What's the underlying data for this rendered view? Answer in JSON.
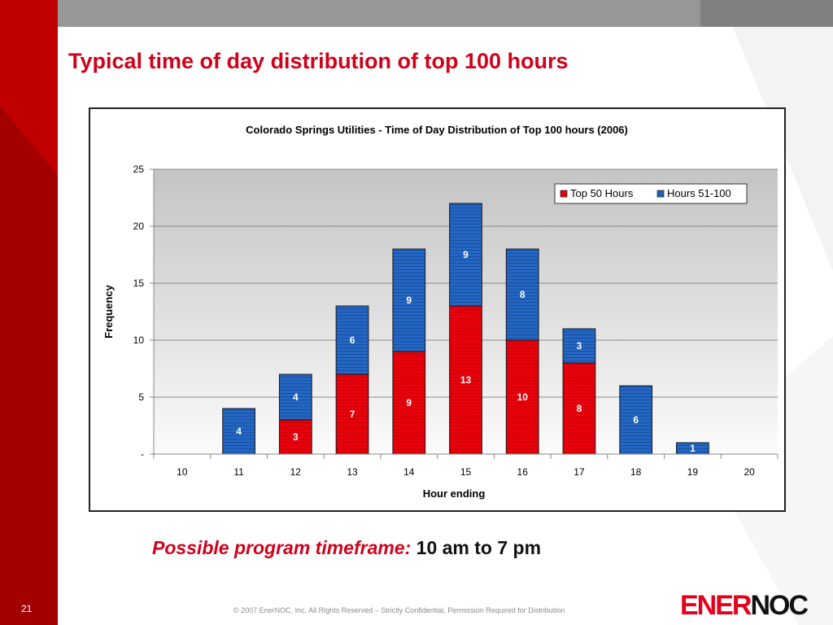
{
  "slide": {
    "title": "Typical time of day distribution of top 100 hours",
    "program_label": "Possible program timeframe:",
    "program_value": "10 am to 7 pm",
    "slide_number": "21",
    "copyright": "© 2007 EnerNOC, Inc. All Rights Reserved – Strictly Confidential, Permission Required for Distribution",
    "logo": {
      "part1": "ENER",
      "part2": "NOC"
    }
  },
  "colors": {
    "brand_red": "#d0021b",
    "series_top50": "#e8000b",
    "series_51_100": "#1f5fb4"
  },
  "chart_data": {
    "type": "bar",
    "stacked": true,
    "title": "Colorado Springs Utilities - Time of Day Distribution of Top 100 hours (2006)",
    "xlabel": "Hour ending",
    "ylabel": "Frequency",
    "categories": [
      "10",
      "11",
      "12",
      "13",
      "14",
      "15",
      "16",
      "17",
      "18",
      "19",
      "20"
    ],
    "series": [
      {
        "name": "Top 50 Hours",
        "values": [
          0,
          0,
          3,
          7,
          9,
          13,
          10,
          8,
          0,
          0,
          0
        ],
        "color": "#e8000b"
      },
      {
        "name": "Hours 51-100",
        "values": [
          0,
          4,
          4,
          6,
          9,
          9,
          8,
          3,
          6,
          1,
          0
        ],
        "color": "#1f5fb4"
      }
    ],
    "ylim": [
      0,
      25
    ],
    "yticks": [
      0,
      5,
      10,
      15,
      20,
      25
    ],
    "ytick_labels": [
      "-",
      "5",
      "10",
      "15",
      "20",
      "25"
    ],
    "grid": true,
    "legend": "top-right"
  }
}
